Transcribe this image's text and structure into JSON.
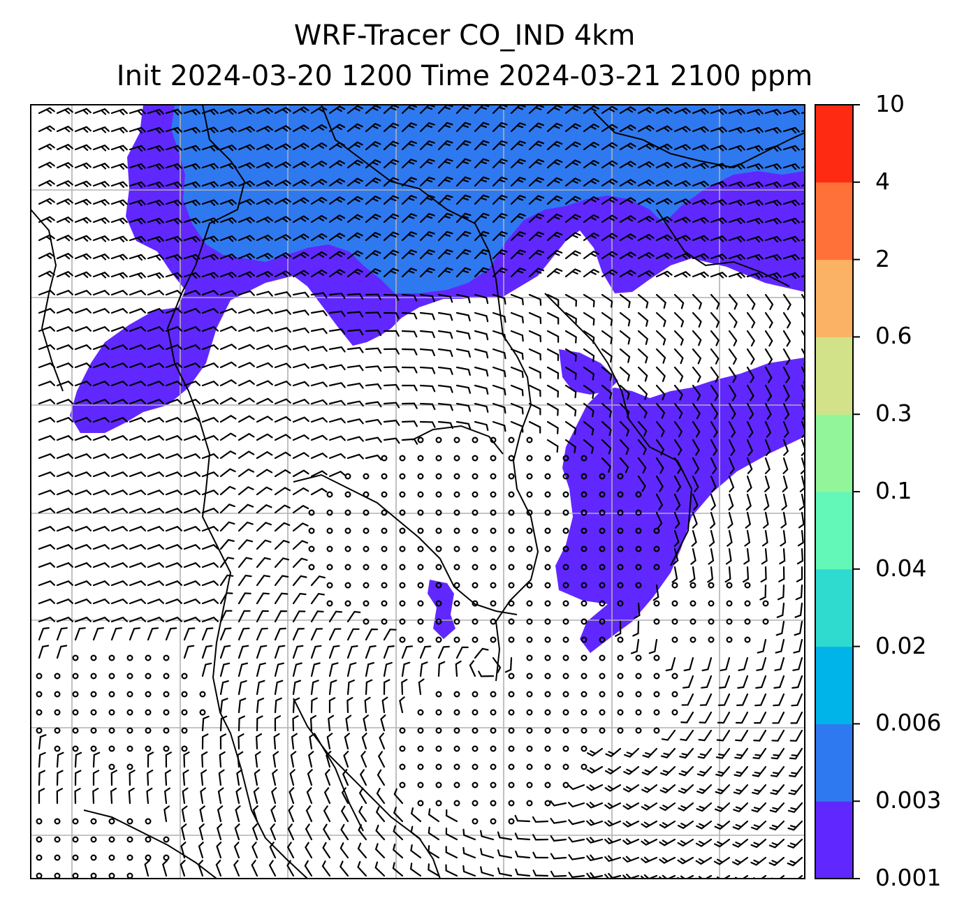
{
  "title": {
    "line1": "WRF-Tracer CO_IND 4km",
    "line2": "Init 2024-03-20 1200 Time 2024-03-21 2100 ppm"
  },
  "colorbar": {
    "levels": [
      "0.001",
      "0.003",
      "0.006",
      "0.02",
      "0.04",
      "0.1",
      "0.3",
      "0.6",
      "2",
      "4",
      "10"
    ],
    "colors": [
      "#6028ff",
      "#2f79f0",
      "#00b3e8",
      "#2fdbcf",
      "#63f7b8",
      "#92f59a",
      "#d1e288",
      "#fcb264",
      "#ff7138",
      "#ff2a12"
    ]
  },
  "field": {
    "fill_color_low": "#6028ff",
    "fill_color_mid": "#2f79f0",
    "wind_glyph": "wind-barb-icon",
    "calm_glyph": "calm-circle-icon",
    "gridlines": true,
    "coastlines": true
  }
}
